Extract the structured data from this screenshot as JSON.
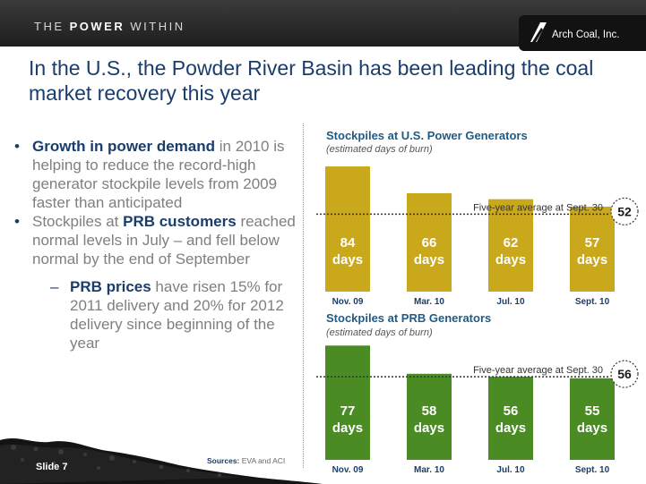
{
  "header": {
    "tagline_pre": "THE",
    "tagline_bold": "POWER",
    "tagline_post": "WITHIN",
    "logo_text": "Arch Coal, Inc."
  },
  "title": "In the U.S., the Powder River Basin has been leading the coal market recovery this year",
  "bullets": {
    "b1_hl": "Growth in power demand",
    "b1_rest": " in 2010 is helping to reduce the record-high generator stockpile levels from 2009 faster than anticipated",
    "b2_pre": "Stockpiles at ",
    "b2_hl": "PRB customers",
    "b2_rest": " reached normal levels in July – and fell below normal by the end of September",
    "sub_hl": "PRB prices",
    "sub_rest": " have risen 15% for 2011 delivery and 20% for 2012 delivery since beginning of the year"
  },
  "footer": {
    "sources_label": "Sources:",
    "sources_text": " EVA and ACI",
    "slide": "Slide 7"
  },
  "colors": {
    "gold": "#c9a81b",
    "green": "#4a8c23",
    "navy": "#1a3d6b"
  },
  "chart_data": [
    {
      "type": "bar",
      "title": "Stockpiles at U.S. Power Generators",
      "subtitle": "(estimated days of burn)",
      "categories": [
        "Nov. 09",
        "Mar. 10",
        "Jul.  10",
        "Sept. 10"
      ],
      "values": [
        84,
        66,
        62,
        57
      ],
      "value_unit": "days",
      "reference": {
        "label": "Five-year average at Sept. 30",
        "value": 52
      },
      "ylim": [
        0,
        90
      ],
      "color": "#c9a81b",
      "grid": false
    },
    {
      "type": "bar",
      "title": "Stockpiles at PRB Generators",
      "subtitle": "(estimated days of burn)",
      "categories": [
        "Nov. 09",
        "Mar. 10",
        "Jul.  10",
        "Sept. 10"
      ],
      "values": [
        77,
        58,
        56,
        55
      ],
      "value_unit": "days",
      "reference": {
        "label": "Five-year average at Sept. 30",
        "value": 56
      },
      "ylim": [
        0,
        82
      ],
      "color": "#4a8c23",
      "grid": false
    }
  ]
}
